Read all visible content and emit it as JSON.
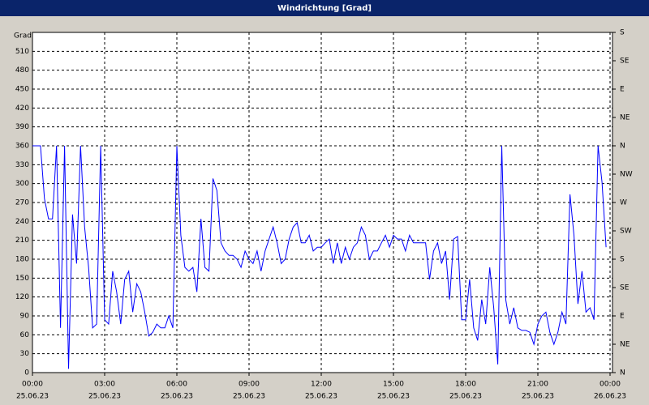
{
  "chart_data": {
    "type": "line",
    "title": "Windrichtung [Grad]",
    "ylabel": "Grad",
    "color": "#0000ff",
    "grid": true,
    "xlim": [
      0,
      1440
    ],
    "xticks": [
      {
        "value": 0,
        "label": "00:00"
      },
      {
        "value": 180,
        "label": "03:00"
      },
      {
        "value": 360,
        "label": "06:00"
      },
      {
        "value": 540,
        "label": "09:00"
      },
      {
        "value": 720,
        "label": "12:00"
      },
      {
        "value": 900,
        "label": "15:00"
      },
      {
        "value": 1080,
        "label": "18:00"
      },
      {
        "value": 1260,
        "label": "21:00"
      },
      {
        "value": 1440,
        "label": "00:00"
      }
    ],
    "xtick_dates": [
      "25.06.23",
      "25.06.23",
      "25.06.23",
      "25.06.23",
      "25.06.23",
      "25.06.23",
      "25.06.23",
      "25.06.23",
      "26.06.23"
    ],
    "ylim": [
      0,
      540
    ],
    "yticks": [
      0,
      30,
      60,
      90,
      120,
      150,
      180,
      210,
      240,
      270,
      300,
      330,
      360,
      390,
      420,
      450,
      480,
      510
    ],
    "y2lim": [
      0,
      540
    ],
    "y2ticks": [
      {
        "value": 0,
        "label": "N"
      },
      {
        "value": 45,
        "label": "NE"
      },
      {
        "value": 90,
        "label": "E"
      },
      {
        "value": 135,
        "label": "SE"
      },
      {
        "value": 180,
        "label": "S"
      },
      {
        "value": 225,
        "label": "SW"
      },
      {
        "value": 270,
        "label": "W"
      },
      {
        "value": 315,
        "label": "NW"
      },
      {
        "value": 360,
        "label": "N"
      },
      {
        "value": 405,
        "label": "NE"
      },
      {
        "value": 450,
        "label": "E"
      },
      {
        "value": 495,
        "label": "SE"
      },
      {
        "value": 540,
        "label": "S"
      }
    ],
    "x": [
      0,
      10,
      20,
      30,
      40,
      50,
      60,
      70,
      80,
      90,
      100,
      110,
      120,
      130,
      140,
      150,
      160,
      170,
      180,
      190,
      200,
      210,
      220,
      230,
      240,
      250,
      260,
      270,
      280,
      290,
      300,
      310,
      320,
      330,
      340,
      350,
      360,
      370,
      380,
      390,
      400,
      410,
      420,
      430,
      440,
      450,
      460,
      470,
      480,
      490,
      500,
      510,
      520,
      530,
      540,
      550,
      560,
      570,
      580,
      590,
      600,
      610,
      620,
      630,
      640,
      650,
      660,
      670,
      680,
      690,
      700,
      710,
      720,
      730,
      740,
      750,
      760,
      770,
      780,
      790,
      800,
      810,
      820,
      830,
      840,
      850,
      860,
      870,
      880,
      890,
      900,
      910,
      920,
      930,
      940,
      950,
      960,
      970,
      980,
      990,
      1000,
      1010,
      1020,
      1030,
      1040,
      1050,
      1060,
      1070,
      1080,
      1090,
      1100,
      1110,
      1120,
      1130,
      1140,
      1150,
      1160,
      1170,
      1180,
      1190,
      1200,
      1210,
      1220,
      1230,
      1240,
      1250,
      1260,
      1270,
      1280,
      1290,
      1300,
      1310,
      1320,
      1330,
      1340,
      1350,
      1360,
      1370,
      1380,
      1390,
      1400,
      1410,
      1420,
      1430
    ],
    "values": [
      360,
      360,
      360,
      276,
      244,
      244,
      360,
      71,
      360,
      6,
      251,
      173,
      360,
      231,
      167,
      71,
      77,
      360,
      84,
      77,
      161,
      128,
      77,
      148,
      161,
      96,
      141,
      128,
      96,
      58,
      64,
      77,
      71,
      71,
      90,
      71,
      360,
      218,
      167,
      161,
      167,
      128,
      244,
      167,
      161,
      308,
      289,
      206,
      193,
      186,
      186,
      180,
      167,
      193,
      180,
      173,
      193,
      161,
      193,
      212,
      231,
      206,
      173,
      180,
      212,
      231,
      238,
      206,
      206,
      218,
      193,
      199,
      199,
      206,
      212,
      173,
      206,
      173,
      199,
      180,
      199,
      206,
      231,
      218,
      180,
      193,
      193,
      206,
      218,
      199,
      218,
      212,
      212,
      193,
      218,
      206,
      206,
      206,
      206,
      148,
      193,
      206,
      173,
      193,
      116,
      212,
      216,
      84,
      84,
      148,
      71,
      51,
      116,
      77,
      167,
      103,
      13,
      360,
      116,
      77,
      103,
      71,
      67,
      67,
      64,
      45,
      77,
      90,
      96,
      64,
      45,
      64,
      96,
      77,
      283,
      218,
      109,
      161,
      96,
      103,
      84,
      360,
      302,
      199
    ]
  }
}
